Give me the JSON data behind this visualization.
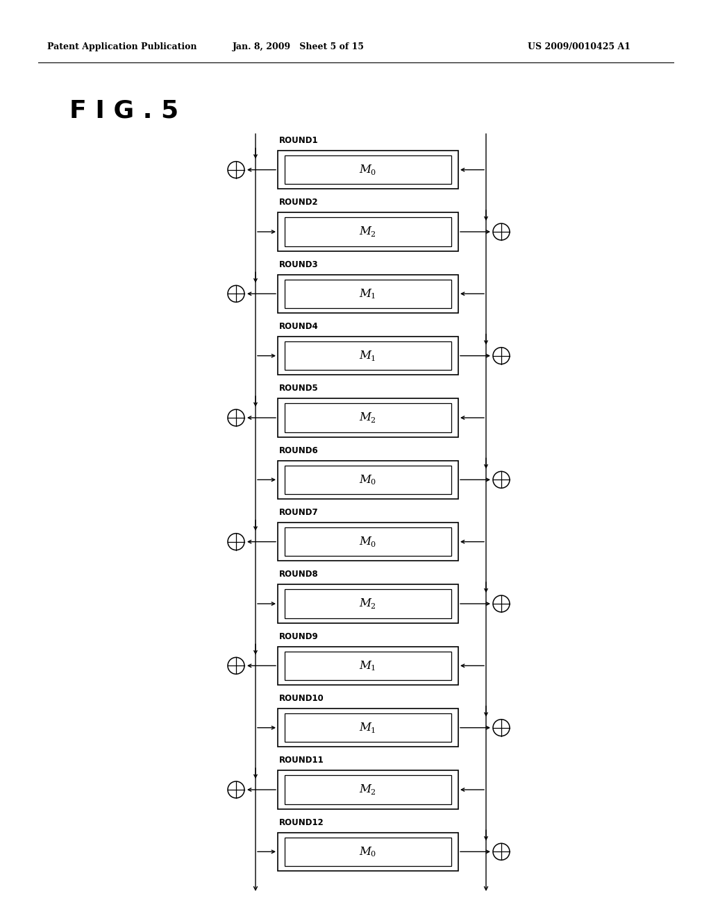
{
  "title": "F I G . 5",
  "header_left": "Patent Application Publication",
  "header_mid": "Jan. 8, 2009   Sheet 5 of 15",
  "header_right": "US 2009/0010425 A1",
  "rounds": [
    {
      "name": "ROUND1",
      "M": "M",
      "sub": "0",
      "side": "left"
    },
    {
      "name": "ROUND2",
      "M": "M",
      "sub": "2",
      "side": "right"
    },
    {
      "name": "ROUND3",
      "M": "M",
      "sub": "1",
      "side": "left"
    },
    {
      "name": "ROUND4",
      "M": "M",
      "sub": "1",
      "side": "right"
    },
    {
      "name": "ROUND5",
      "M": "M",
      "sub": "2",
      "side": "left"
    },
    {
      "name": "ROUND6",
      "M": "M",
      "sub": "0",
      "side": "right"
    },
    {
      "name": "ROUND7",
      "M": "M",
      "sub": "0",
      "side": "left"
    },
    {
      "name": "ROUND8",
      "M": "M",
      "sub": "2",
      "side": "right"
    },
    {
      "name": "ROUND9",
      "M": "M",
      "sub": "1",
      "side": "left"
    },
    {
      "name": "ROUND10",
      "M": "M",
      "sub": "1",
      "side": "right"
    },
    {
      "name": "ROUND11",
      "M": "M",
      "sub": "2",
      "side": "left"
    },
    {
      "name": "ROUND12",
      "M": "M",
      "sub": "0",
      "side": "right"
    }
  ],
  "background_color": "#ffffff",
  "line_color": "#000000",
  "box_color": "#ffffff",
  "text_color": "#000000",
  "pw": 1024,
  "ph": 1320
}
